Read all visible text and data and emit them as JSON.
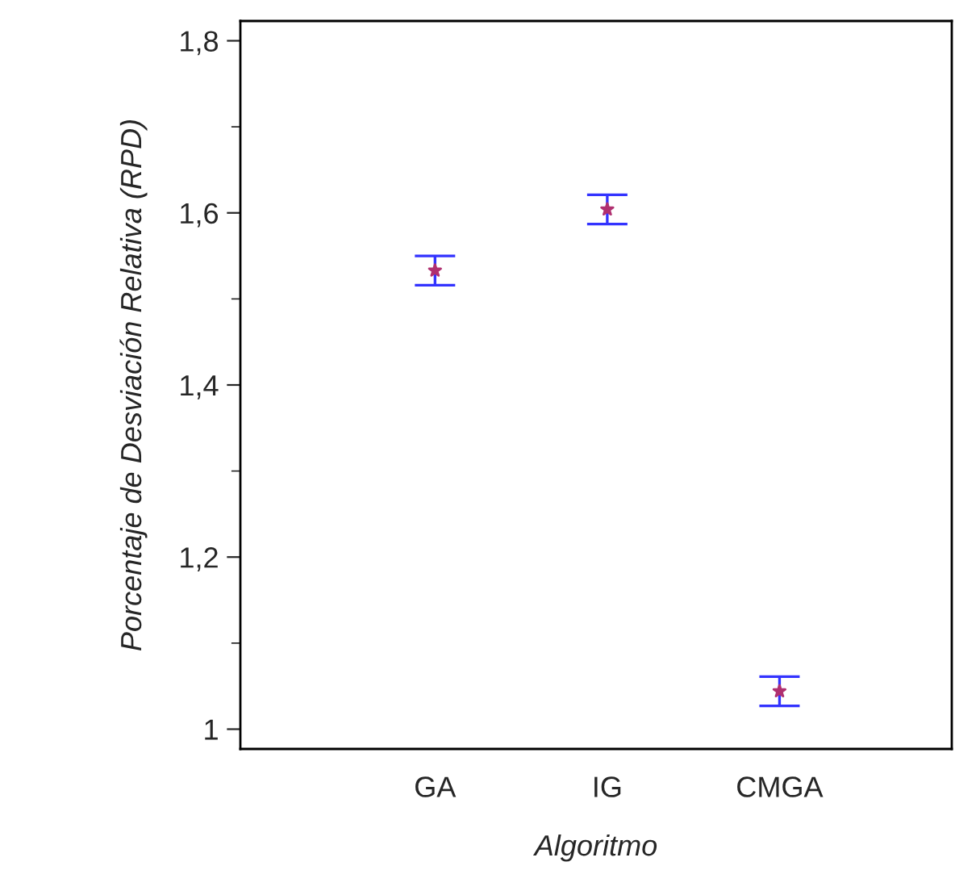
{
  "chart_data": {
    "type": "scatter",
    "xlabel": "Algoritmo",
    "ylabel": "Porcentaje de Desviación Relativa (RPD)",
    "categories": [
      "GA",
      "IG",
      "CMGA"
    ],
    "series": [
      {
        "color": "#b03070",
        "values": [
          1.533,
          1.604,
          1.044
        ],
        "errors": [
          0.017,
          0.017,
          0.017
        ]
      }
    ],
    "ylim": [
      0.977,
      1.823
    ],
    "yticks": [
      {
        "value": 1,
        "label": "1"
      },
      {
        "value": 1.2,
        "label": "1,2"
      },
      {
        "value": 1.4,
        "label": "1,4"
      },
      {
        "value": 1.6,
        "label": "1,6"
      },
      {
        "value": 1.8,
        "label": "1,8"
      }
    ],
    "marker": "star",
    "grid": false,
    "legend": false
  }
}
